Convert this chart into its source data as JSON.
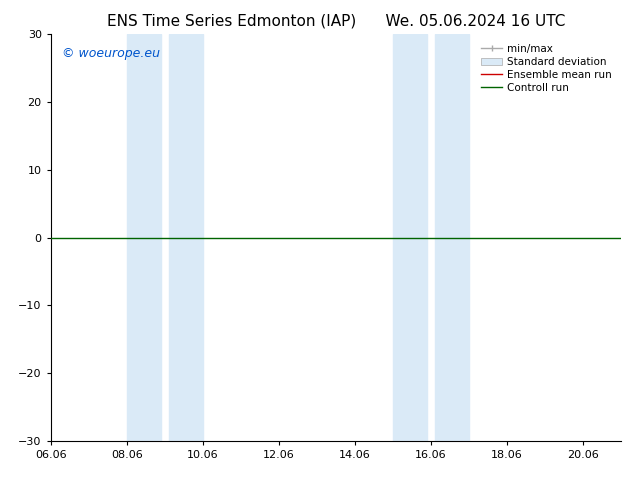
{
  "title_left": "ENS Time Series Edmonton (IAP)",
  "title_right": "We. 05.06.2024 16 UTC",
  "watermark": "© woeurope.eu",
  "ylim": [
    -30,
    30
  ],
  "yticks": [
    -30,
    -20,
    -10,
    0,
    10,
    20,
    30
  ],
  "xtick_labels": [
    "06.06",
    "08.06",
    "10.06",
    "12.06",
    "14.06",
    "16.06",
    "18.06",
    "20.06"
  ],
  "xtick_positions": [
    0,
    2,
    4,
    6,
    8,
    10,
    12,
    14
  ],
  "xlim": [
    0,
    15
  ],
  "shaded_bands": [
    {
      "x_start": 2.0,
      "x_end": 2.9
    },
    {
      "x_start": 3.1,
      "x_end": 4.0
    },
    {
      "x_start": 9.0,
      "x_end": 9.9
    },
    {
      "x_start": 10.1,
      "x_end": 11.0
    }
  ],
  "flat_line_y": 0,
  "flat_line_color": "#006400",
  "ensemble_mean_color": "#cc0000",
  "minmax_color": "#aaaaaa",
  "stddev_color": "#daeaf7",
  "background_color": "#ffffff",
  "legend_entries": [
    "min/max",
    "Standard deviation",
    "Ensemble mean run",
    "Controll run"
  ],
  "legend_colors": [
    "#aaaaaa",
    "#daeaf7",
    "#cc0000",
    "#006400"
  ],
  "title_fontsize": 11,
  "watermark_color": "#0055cc",
  "watermark_fontsize": 9,
  "tick_fontsize": 8,
  "legend_fontsize": 7.5
}
